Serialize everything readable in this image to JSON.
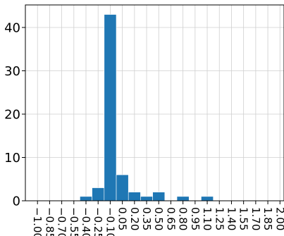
{
  "chart_data": {
    "type": "bar",
    "title": "",
    "xlabel": "",
    "ylabel": "",
    "grid": true,
    "bar_color": "#1f77b4",
    "x_ticks": [
      "-1.00",
      "-0.85",
      "-0.70",
      "-0.55",
      "-0.40",
      "-0.25",
      "-0.10",
      "0.05",
      "0.20",
      "0.35",
      "0.50",
      "0.65",
      "0.80",
      "0.95",
      "1.10",
      "1.25",
      "1.40",
      "1.55",
      "1.70",
      "1.85",
      "2.00"
    ],
    "y_ticks": [
      "0",
      "10",
      "20",
      "30",
      "40"
    ],
    "xlim": [
      -1.15,
      2.05
    ],
    "ylim": [
      0,
      45.2
    ],
    "bin_width": 0.15,
    "bins": [
      {
        "start": -0.475,
        "count": 1
      },
      {
        "start": -0.325,
        "count": 3
      },
      {
        "start": -0.175,
        "count": 43
      },
      {
        "start": -0.025,
        "count": 6
      },
      {
        "start": 0.125,
        "count": 2
      },
      {
        "start": 0.275,
        "count": 1
      },
      {
        "start": 0.425,
        "count": 2
      },
      {
        "start": 0.725,
        "count": 1
      },
      {
        "start": 1.025,
        "count": 1
      }
    ]
  }
}
